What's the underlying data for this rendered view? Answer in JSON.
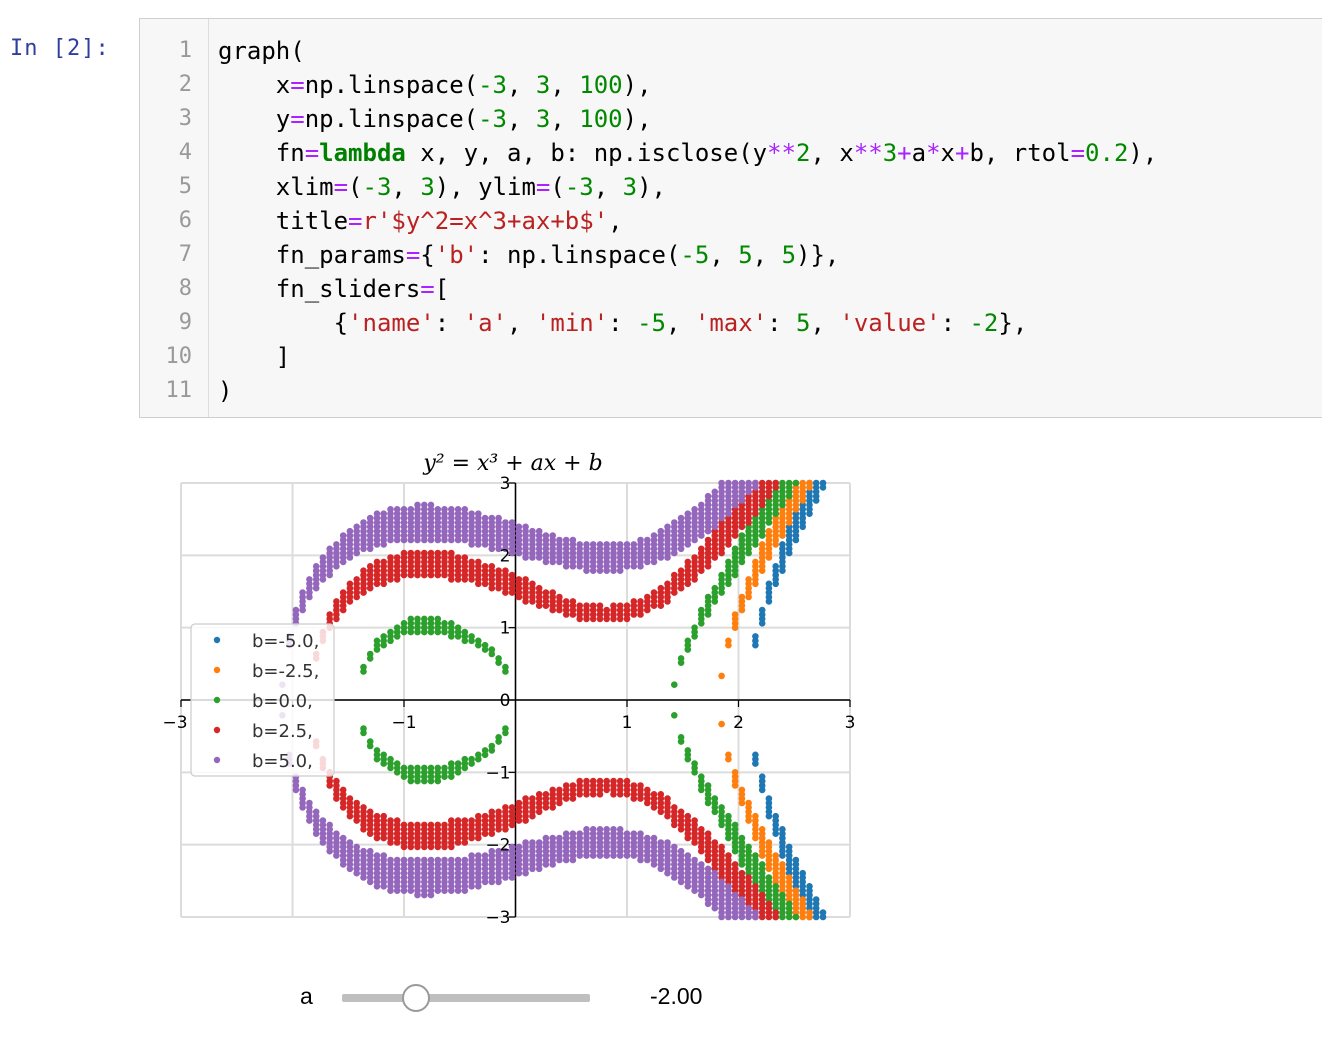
{
  "prompt": "In [2]:",
  "code": {
    "line_numbers": [
      "1",
      "2",
      "3",
      "4",
      "5",
      "6",
      "7",
      "8",
      "9",
      "10",
      "11"
    ],
    "lines": [
      [
        {
          "t": "graph(",
          "c": ""
        }
      ],
      [
        {
          "t": "    x",
          "c": ""
        },
        {
          "t": "=",
          "c": "op"
        },
        {
          "t": "np.linspace(",
          "c": ""
        },
        {
          "t": "-3",
          "c": "num"
        },
        {
          "t": ", ",
          "c": ""
        },
        {
          "t": "3",
          "c": "num"
        },
        {
          "t": ", ",
          "c": ""
        },
        {
          "t": "100",
          "c": "num"
        },
        {
          "t": "),",
          "c": ""
        }
      ],
      [
        {
          "t": "    y",
          "c": ""
        },
        {
          "t": "=",
          "c": "op"
        },
        {
          "t": "np.linspace(",
          "c": ""
        },
        {
          "t": "-3",
          "c": "num"
        },
        {
          "t": ", ",
          "c": ""
        },
        {
          "t": "3",
          "c": "num"
        },
        {
          "t": ", ",
          "c": ""
        },
        {
          "t": "100",
          "c": "num"
        },
        {
          "t": "),",
          "c": ""
        }
      ],
      [
        {
          "t": "    fn",
          "c": ""
        },
        {
          "t": "=",
          "c": "op"
        },
        {
          "t": "lambda",
          "c": "kw"
        },
        {
          "t": " x, y, a, b: np.isclose(y",
          "c": ""
        },
        {
          "t": "**",
          "c": "op"
        },
        {
          "t": "2",
          "c": "num"
        },
        {
          "t": ", x",
          "c": ""
        },
        {
          "t": "**",
          "c": "op"
        },
        {
          "t": "3",
          "c": "num"
        },
        {
          "t": "+",
          "c": "op"
        },
        {
          "t": "a",
          "c": ""
        },
        {
          "t": "*",
          "c": "op"
        },
        {
          "t": "x",
          "c": ""
        },
        {
          "t": "+",
          "c": "op"
        },
        {
          "t": "b, rtol",
          "c": ""
        },
        {
          "t": "=",
          "c": "op"
        },
        {
          "t": "0.2",
          "c": "num"
        },
        {
          "t": "),",
          "c": ""
        }
      ],
      [
        {
          "t": "    xlim",
          "c": ""
        },
        {
          "t": "=",
          "c": "op"
        },
        {
          "t": "(",
          "c": ""
        },
        {
          "t": "-3",
          "c": "num"
        },
        {
          "t": ", ",
          "c": ""
        },
        {
          "t": "3",
          "c": "num"
        },
        {
          "t": "), ylim",
          "c": ""
        },
        {
          "t": "=",
          "c": "op"
        },
        {
          "t": "(",
          "c": ""
        },
        {
          "t": "-3",
          "c": "num"
        },
        {
          "t": ", ",
          "c": ""
        },
        {
          "t": "3",
          "c": "num"
        },
        {
          "t": "),",
          "c": ""
        }
      ],
      [
        {
          "t": "    title",
          "c": ""
        },
        {
          "t": "=",
          "c": "op"
        },
        {
          "t": "r'$y^2=x^3+ax+b$'",
          "c": "str"
        },
        {
          "t": ",",
          "c": ""
        }
      ],
      [
        {
          "t": "    fn_params",
          "c": ""
        },
        {
          "t": "=",
          "c": "op"
        },
        {
          "t": "{",
          "c": ""
        },
        {
          "t": "'b'",
          "c": "str"
        },
        {
          "t": ": np.linspace(",
          "c": ""
        },
        {
          "t": "-5",
          "c": "num"
        },
        {
          "t": ", ",
          "c": ""
        },
        {
          "t": "5",
          "c": "num"
        },
        {
          "t": ", ",
          "c": ""
        },
        {
          "t": "5",
          "c": "num"
        },
        {
          "t": ")},",
          "c": ""
        }
      ],
      [
        {
          "t": "    fn_sliders",
          "c": ""
        },
        {
          "t": "=",
          "c": "op"
        },
        {
          "t": "[",
          "c": ""
        }
      ],
      [
        {
          "t": "        {",
          "c": ""
        },
        {
          "t": "'name'",
          "c": "str"
        },
        {
          "t": ": ",
          "c": ""
        },
        {
          "t": "'a'",
          "c": "str"
        },
        {
          "t": ", ",
          "c": ""
        },
        {
          "t": "'min'",
          "c": "str"
        },
        {
          "t": ": ",
          "c": ""
        },
        {
          "t": "-5",
          "c": "num"
        },
        {
          "t": ", ",
          "c": ""
        },
        {
          "t": "'max'",
          "c": "str"
        },
        {
          "t": ": ",
          "c": ""
        },
        {
          "t": "5",
          "c": "num"
        },
        {
          "t": ", ",
          "c": ""
        },
        {
          "t": "'value'",
          "c": "str"
        },
        {
          "t": ": ",
          "c": ""
        },
        {
          "t": "-2",
          "c": "num"
        },
        {
          "t": "},",
          "c": ""
        }
      ],
      [
        {
          "t": "    ]",
          "c": ""
        }
      ],
      [
        {
          "t": ")",
          "c": ""
        }
      ]
    ]
  },
  "chart_data": {
    "type": "scatter",
    "title": "y² = x³ + ax + b",
    "xlim": [
      -3,
      3
    ],
    "ylim": [
      -3,
      3
    ],
    "grid": true,
    "legend_placement": "center-left",
    "x_ticks": [
      "−3",
      "−1",
      "1",
      "2",
      "3"
    ],
    "y_ticks": [
      "3",
      "2",
      "1",
      "0",
      "−1",
      "−2",
      "−3"
    ],
    "a": -2,
    "rtol": 0.2,
    "series": [
      {
        "name": "b=-5.0,",
        "b": -5.0,
        "color": "#1f77b4"
      },
      {
        "name": "b=-2.5,",
        "b": -2.5,
        "color": "#ff7f0e"
      },
      {
        "name": "b=0.0,",
        "b": 0.0,
        "color": "#2ca02c"
      },
      {
        "name": "b=2.5,",
        "b": 2.5,
        "color": "#d62728"
      },
      {
        "name": "b=5.0,",
        "b": 5.0,
        "color": "#9467bd"
      }
    ]
  },
  "slider": {
    "label": "a",
    "min": -5,
    "max": 5,
    "value": -2,
    "value_text": "-2.00",
    "track_color": "#bfbfbf"
  }
}
